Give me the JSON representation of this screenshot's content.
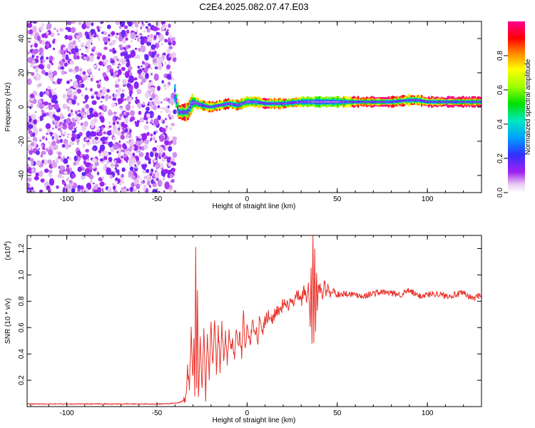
{
  "title": "C2E4.2025.082.07.47.E03",
  "colors": {
    "trace": "#e8322a",
    "frame": "#000000",
    "background": "#ffffff"
  },
  "chart_data": [
    {
      "type": "heatmap",
      "xlabel": "Height of straight line (km)",
      "ylabel": "Frequency (Hz)",
      "xlim": [
        -122,
        130
      ],
      "ylim": [
        -50,
        50
      ],
      "x_ticks": [
        "-100",
        "-50",
        "0",
        "50",
        "100"
      ],
      "x_tick_values": [
        -100,
        -50,
        0,
        50,
        100
      ],
      "y_ticks": [
        "-40",
        "-20",
        "0",
        "20",
        "40"
      ],
      "y_tick_values": [
        -40,
        -20,
        0,
        20,
        40
      ],
      "noise_region_x": [
        -122,
        -40
      ],
      "signal_track": [
        {
          "x": -40,
          "f": 8,
          "amp": 0.35
        },
        {
          "x": -38,
          "f": -3,
          "amp": 0.9
        },
        {
          "x": -33,
          "f": -3,
          "amp": 0.85
        },
        {
          "x": -30,
          "f": 3,
          "amp": 0.6
        },
        {
          "x": -25,
          "f": 1,
          "amp": 0.75
        },
        {
          "x": -20,
          "f": 0,
          "amp": 0.9
        },
        {
          "x": -15,
          "f": 1,
          "amp": 0.8
        },
        {
          "x": -10,
          "f": 2,
          "amp": 0.8
        },
        {
          "x": -5,
          "f": 1,
          "amp": 0.75
        },
        {
          "x": 0,
          "f": 3,
          "amp": 0.7
        },
        {
          "x": 5,
          "f": 3,
          "amp": 0.75
        },
        {
          "x": 10,
          "f": 2,
          "amp": 0.9
        },
        {
          "x": 20,
          "f": 2,
          "amp": 0.8
        },
        {
          "x": 30,
          "f": 3,
          "amp": 0.7
        },
        {
          "x": 40,
          "f": 3,
          "amp": 0.55
        },
        {
          "x": 50,
          "f": 3,
          "amp": 0.6
        },
        {
          "x": 60,
          "f": 3,
          "amp": 0.95
        },
        {
          "x": 70,
          "f": 3,
          "amp": 1.0
        },
        {
          "x": 80,
          "f": 3,
          "amp": 0.95
        },
        {
          "x": 90,
          "f": 4,
          "amp": 0.85
        },
        {
          "x": 95,
          "f": 4,
          "amp": 0.8
        },
        {
          "x": 100,
          "f": 3,
          "amp": 0.95
        },
        {
          "x": 110,
          "f": 3,
          "amp": 1.0
        },
        {
          "x": 120,
          "f": 3,
          "amp": 1.0
        },
        {
          "x": 130,
          "f": 3,
          "amp": 1.0
        }
      ],
      "colorbar": {
        "label": "Normalized spectral amplitude",
        "range": [
          0,
          1
        ],
        "ticks": [
          "0.0",
          "0.2",
          "0.4",
          "0.6",
          "0.8"
        ],
        "tick_values": [
          0,
          0.2,
          0.4,
          0.6,
          0.8
        ]
      }
    },
    {
      "type": "line",
      "xlabel": "Height of straight line (km)",
      "ylabel": "SNR (10 * v/v)",
      "exponent_label": "(x10",
      "exponent_sup": "4",
      "exponent_close": ")",
      "xlim": [
        -122,
        130
      ],
      "ylim": [
        0,
        1.3
      ],
      "x_ticks": [
        "-100",
        "-50",
        "0",
        "50",
        "100"
      ],
      "x_tick_values": [
        -100,
        -50,
        0,
        50,
        100
      ],
      "y_ticks": [
        "0.2",
        "0.4",
        "0.6",
        "0.8",
        "1.0",
        "1.2"
      ],
      "y_tick_values": [
        0.2,
        0.4,
        0.6,
        0.8,
        1.0,
        1.2
      ],
      "series": [
        {
          "x": [
            -122,
            -100,
            -80,
            -60,
            -45,
            -38,
            -34,
            -33,
            -32,
            -31,
            -30,
            -29.5,
            -29,
            -28.5,
            -28,
            -27.5,
            -27,
            -26,
            -25,
            -24,
            -23,
            -22,
            -21,
            -20,
            -19,
            -18,
            -17,
            -16,
            -15,
            -14,
            -13,
            -12,
            -11,
            -10,
            -9,
            -8,
            -7,
            -6,
            -5,
            -4,
            -3,
            -2,
            -1,
            0,
            1,
            2,
            3,
            4,
            5,
            6,
            7,
            8,
            9,
            10,
            12,
            14,
            16,
            18,
            20,
            22,
            24,
            26,
            28,
            30,
            32,
            33,
            34,
            35,
            35.5,
            36,
            36.5,
            37,
            37.5,
            38,
            38.5,
            39,
            39.5,
            40,
            41,
            42,
            43,
            44,
            45,
            46,
            48,
            50,
            55,
            60,
            65,
            70,
            75,
            80,
            85,
            90,
            95,
            100,
            105,
            110,
            115,
            120,
            125,
            130
          ],
          "y": [
            0.02,
            0.02,
            0.02,
            0.02,
            0.02,
            0.03,
            0.05,
            0.3,
            0.1,
            0.6,
            0.2,
            0.55,
            0.05,
            1.18,
            0.15,
            0.9,
            0.1,
            0.5,
            0.12,
            0.6,
            0.05,
            0.55,
            0.2,
            0.65,
            0.3,
            0.7,
            0.25,
            0.6,
            0.3,
            0.65,
            0.35,
            0.55,
            0.3,
            0.6,
            0.4,
            0.55,
            0.35,
            0.6,
            0.45,
            0.55,
            0.4,
            0.7,
            0.45,
            0.6,
            0.55,
            0.5,
            0.65,
            0.55,
            0.6,
            0.5,
            0.7,
            0.55,
            0.6,
            0.65,
            0.7,
            0.65,
            0.75,
            0.7,
            0.78,
            0.75,
            0.8,
            0.78,
            0.85,
            0.8,
            0.9,
            0.78,
            0.95,
            0.62,
            1.05,
            0.5,
            1.3,
            0.48,
            1.22,
            0.6,
            1.05,
            0.7,
            0.95,
            0.88,
            0.92,
            0.8,
            0.95,
            0.85,
            0.9,
            0.85,
            0.88,
            0.85,
            0.86,
            0.85,
            0.84,
            0.86,
            0.87,
            0.86,
            0.85,
            0.88,
            0.84,
            0.85,
            0.86,
            0.84,
            0.85,
            0.86,
            0.82,
            0.85
          ]
        }
      ]
    }
  ]
}
